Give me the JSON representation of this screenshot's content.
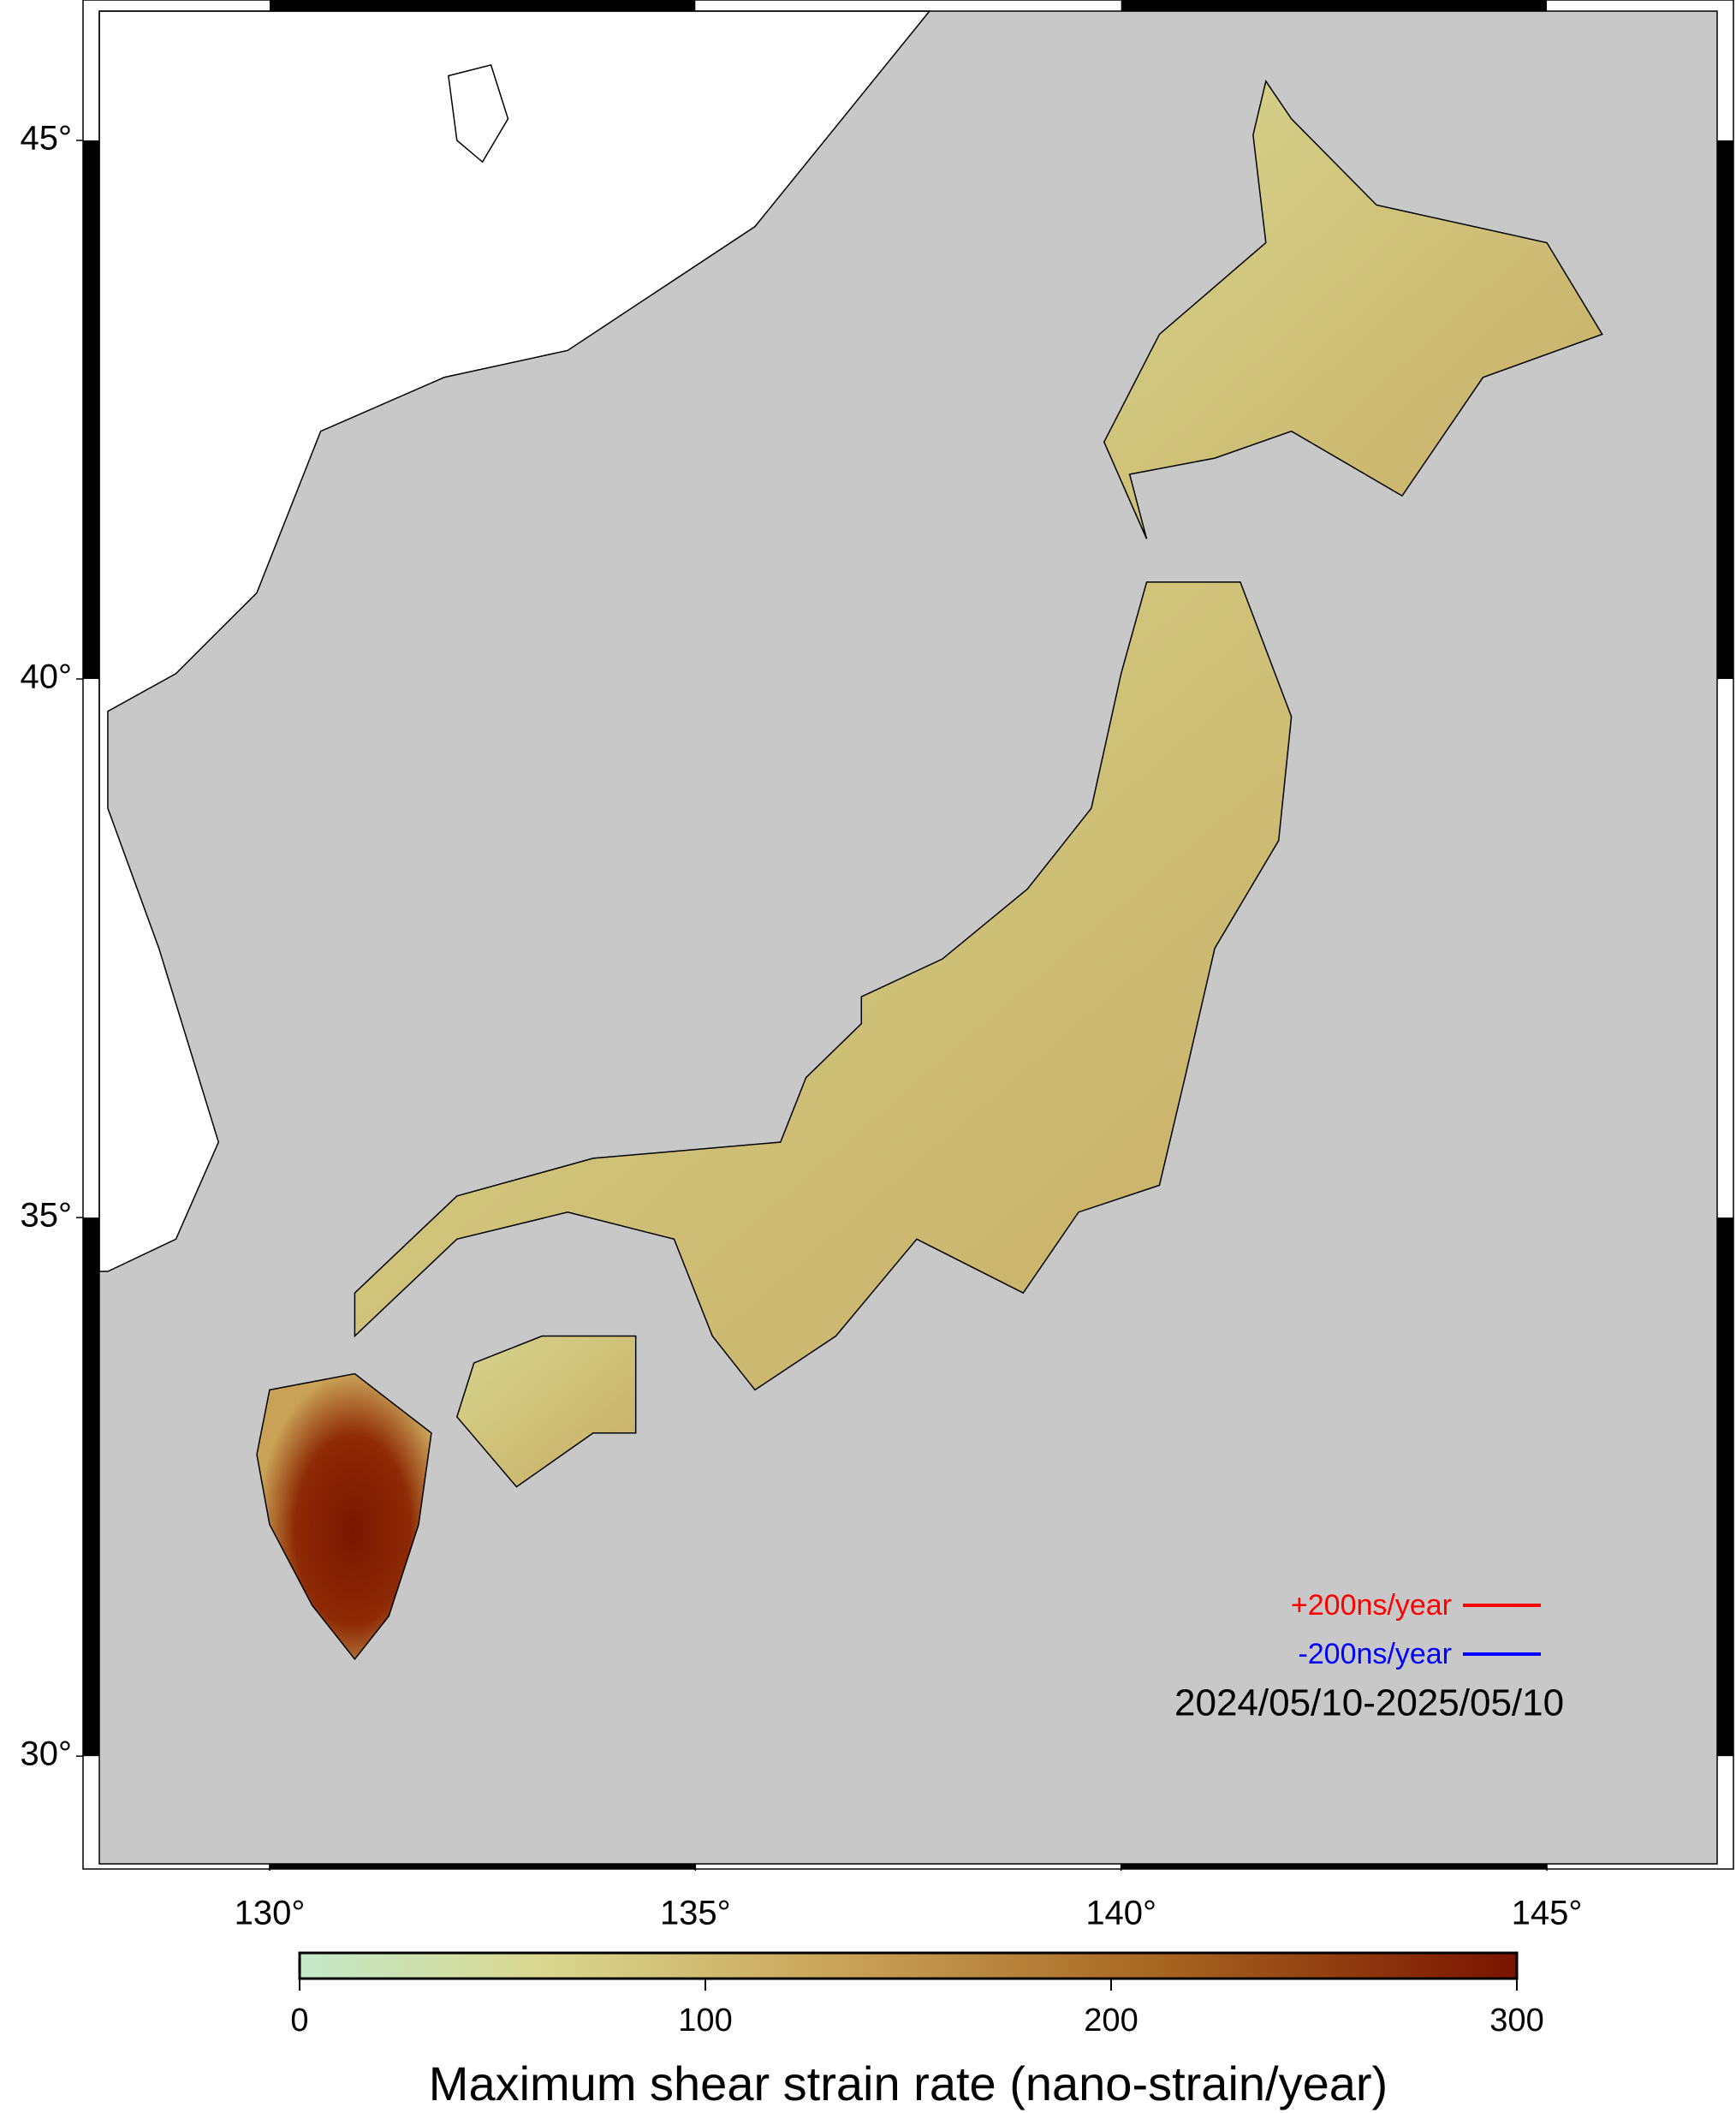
{
  "map": {
    "xlim": [
      128,
      147
    ],
    "ylim": [
      29,
      46.2
    ],
    "lon_ticks": [
      {
        "value": 130,
        "label": "130°"
      },
      {
        "value": 135,
        "label": "135°"
      },
      {
        "value": 140,
        "label": "140°"
      },
      {
        "value": 145,
        "label": "145°"
      }
    ],
    "lat_ticks": [
      {
        "value": 30,
        "label": "30°"
      },
      {
        "value": 35,
        "label": "35°"
      },
      {
        "value": 40,
        "label": "40°"
      },
      {
        "value": 45,
        "label": "45°"
      }
    ]
  },
  "legend": {
    "positive": "+200ns/year",
    "positive_color": "#ff0000",
    "negative": "-200ns/year",
    "negative_color": "#0000ff",
    "period": "2024/05/10-2025/05/10"
  },
  "colorbar": {
    "label": "Maximum shear strain rate (nano-strain/year)",
    "lim": [
      0,
      300
    ],
    "ticks": [
      0,
      100,
      200,
      300
    ]
  }
}
